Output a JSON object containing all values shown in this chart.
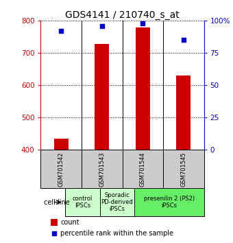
{
  "title": "GDS4141 / 210740_s_at",
  "samples": [
    "GSM701542",
    "GSM701543",
    "GSM701544",
    "GSM701545"
  ],
  "counts": [
    435,
    728,
    778,
    630
  ],
  "percentiles": [
    92,
    96,
    98,
    85
  ],
  "ylim_left": [
    400,
    800
  ],
  "ylim_right": [
    0,
    100
  ],
  "yticks_left": [
    400,
    500,
    600,
    700,
    800
  ],
  "yticks_right": [
    0,
    25,
    50,
    75,
    100
  ],
  "bar_color": "#cc0000",
  "dot_color": "#0000cc",
  "bar_width": 0.35,
  "grid_color": "#000000",
  "sample_label_color": "#cccccc",
  "group_info": [
    {
      "label": "control\nIPSCs",
      "start": 0,
      "end": 1,
      "color": "#ccffcc"
    },
    {
      "label": "Sporadic\nPD-derived\niPSCs",
      "start": 1,
      "end": 2,
      "color": "#ccffcc"
    },
    {
      "label": "presenilin 2 (PS2)\niPSCs",
      "start": 2,
      "end": 4,
      "color": "#66ee66"
    }
  ],
  "cell_line_label": "cell line",
  "legend_count_label": "count",
  "legend_pct_label": "percentile rank within the sample",
  "left_axis_color": "#cc0000",
  "right_axis_color": "#0000cc",
  "title_fontsize": 10,
  "tick_fontsize": 7.5,
  "sample_fontsize": 6,
  "group_fontsize": 6,
  "legend_fontsize": 7
}
